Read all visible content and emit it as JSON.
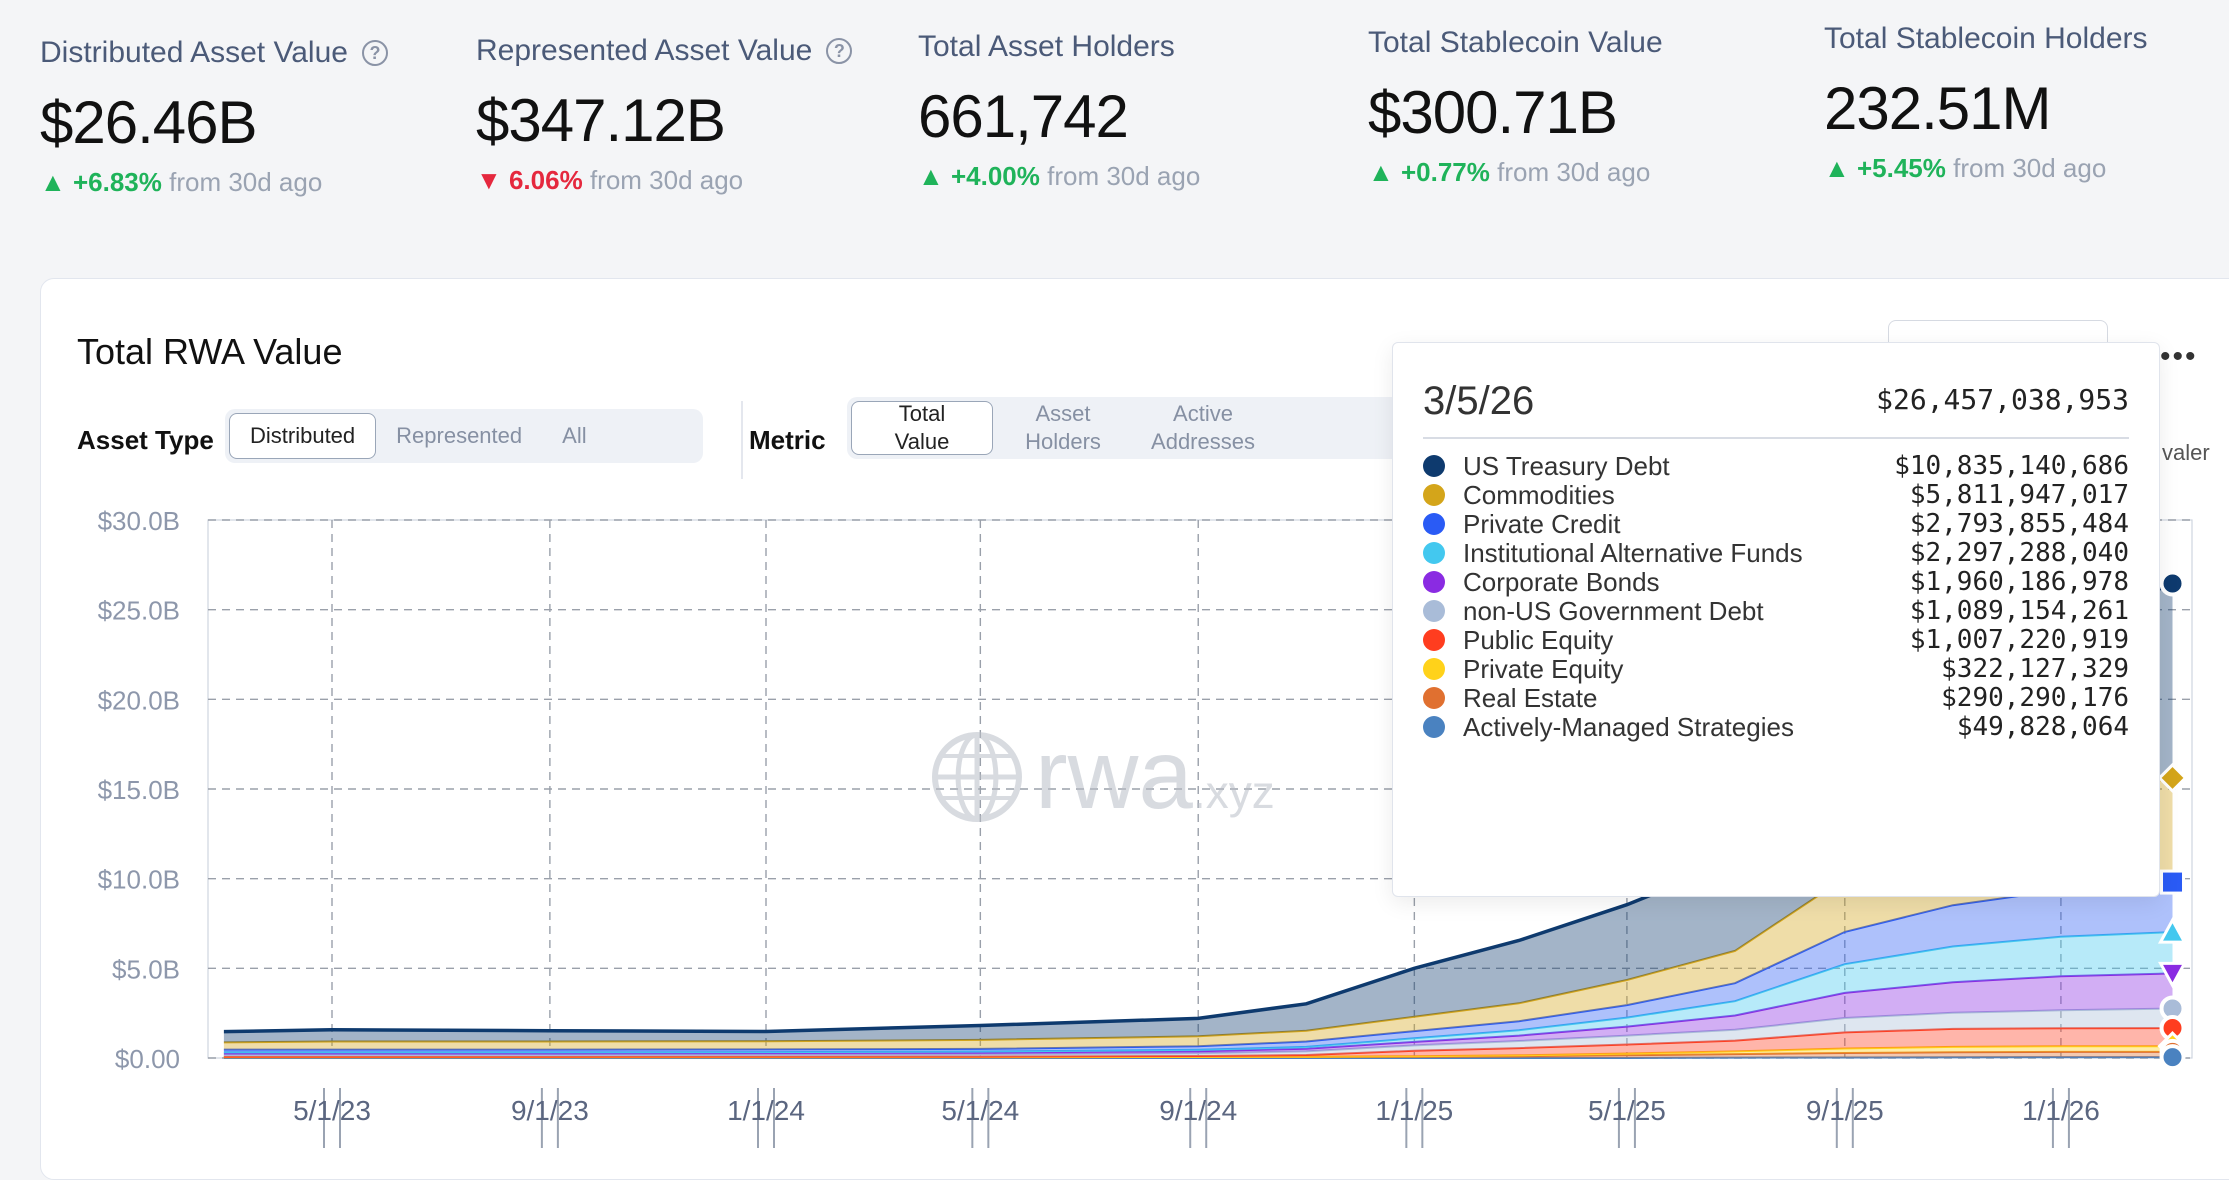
{
  "stats": [
    {
      "label": "Distributed Asset Value",
      "has_help": true,
      "value": "$26.46B",
      "dir": "up",
      "delta": "+6.83%",
      "suffix": "from 30d ago"
    },
    {
      "label": "Represented Asset Value",
      "has_help": true,
      "value": "$347.12B",
      "dir": "down",
      "delta": "6.06%",
      "suffix": "from 30d ago"
    },
    {
      "label": "Total Asset Holders",
      "has_help": false,
      "value": "661,742",
      "dir": "up",
      "delta": "+4.00%",
      "suffix": "from 30d ago"
    },
    {
      "label": "Total Stablecoin Value",
      "has_help": false,
      "value": "$300.71B",
      "dir": "up",
      "delta": "+0.77%",
      "suffix": "from 30d ago"
    },
    {
      "label": "Total Stablecoin Holders",
      "has_help": false,
      "value": "232.51M",
      "dir": "up",
      "delta": "+5.45%",
      "suffix": "from 30d ago"
    }
  ],
  "card": {
    "title": "Total RWA Value",
    "asset_type_label": "Asset Type",
    "asset_type_options": [
      "Distributed",
      "Represented",
      "All"
    ],
    "asset_type_selected": "Distributed",
    "metric_label": "Metric",
    "metric_options": [
      "Total Value",
      "Asset Holders",
      "Active Addresses"
    ],
    "metric_selected": "Total Value",
    "cut_label": "valer",
    "watermark": "rwa",
    "watermark_suffix": ".xyz",
    "help_glyph": "?",
    "up_glyph": "▲",
    "down_glyph": "▼",
    "more_glyph": "•••"
  },
  "tooltip": {
    "date": "3/5/26",
    "total": "$26,457,038,953",
    "rows": [
      {
        "name": "US Treasury Debt",
        "value": "$10,835,140,686",
        "color": "#0e3a6e"
      },
      {
        "name": "Commodities",
        "value": "$5,811,947,017",
        "color": "#d4a51a"
      },
      {
        "name": "Private Credit",
        "value": "$2,793,855,484",
        "color": "#2a5bf5"
      },
      {
        "name": "Institutional Alternative Funds",
        "value": "$2,297,288,040",
        "color": "#43c8ef"
      },
      {
        "name": "Corporate Bonds",
        "value": "$1,960,186,978",
        "color": "#8a2be2"
      },
      {
        "name": "non-US Government Debt",
        "value": "$1,089,154,261",
        "color": "#a9bcd8"
      },
      {
        "name": "Public Equity",
        "value": "$1,007,220,919",
        "color": "#ff3d1f"
      },
      {
        "name": "Private Equity",
        "value": "$322,127,329",
        "color": "#ffd21a"
      },
      {
        "name": "Real Estate",
        "value": "$290,290,176",
        "color": "#e07030"
      },
      {
        "name": "Actively-Managed Strategies",
        "value": "$49,828,064",
        "color": "#4a82c0"
      }
    ]
  },
  "chart_data": {
    "type": "area",
    "stacked": true,
    "ylim": [
      0,
      30
    ],
    "y_unit": "B",
    "y_ticks": [
      "$0.00",
      "$5.0B",
      "$10.0B",
      "$15.0B",
      "$20.0B",
      "$25.0B",
      "$30.0B"
    ],
    "x_ticks": [
      "5/1/23",
      "9/1/23",
      "1/1/24",
      "5/1/24",
      "9/1/24",
      "1/1/25",
      "5/1/25",
      "9/1/25",
      "1/1/26"
    ],
    "grid": true,
    "x": [
      "3/1/23",
      "5/1/23",
      "9/1/23",
      "1/1/24",
      "5/1/24",
      "9/1/24",
      "11/1/24",
      "1/1/25",
      "3/1/25",
      "5/1/25",
      "7/1/25",
      "9/1/25",
      "11/1/25",
      "1/1/26",
      "3/5/26"
    ],
    "series": [
      {
        "name": "Actively-Managed Strategies",
        "color": "#4a82c0",
        "values": [
          0,
          0,
          0,
          0,
          0,
          0,
          0,
          0,
          0,
          0,
          0.02,
          0.03,
          0.04,
          0.05,
          0.05
        ]
      },
      {
        "name": "Real Estate",
        "color": "#e07030",
        "values": [
          0.05,
          0.05,
          0.05,
          0.05,
          0.05,
          0.06,
          0.06,
          0.07,
          0.1,
          0.15,
          0.2,
          0.25,
          0.28,
          0.29,
          0.29
        ]
      },
      {
        "name": "Private Equity",
        "color": "#ffd21a",
        "values": [
          0,
          0,
          0,
          0,
          0,
          0,
          0.01,
          0.03,
          0.05,
          0.1,
          0.15,
          0.25,
          0.3,
          0.32,
          0.32
        ]
      },
      {
        "name": "Public Equity",
        "color": "#ff3d1f",
        "values": [
          0.02,
          0.02,
          0.02,
          0.03,
          0.03,
          0.05,
          0.1,
          0.3,
          0.4,
          0.5,
          0.6,
          0.9,
          1.0,
          1.0,
          1.01
        ]
      },
      {
        "name": "non-US Government Debt",
        "color": "#a9bcd8",
        "values": [
          0.1,
          0.1,
          0.1,
          0.1,
          0.12,
          0.15,
          0.2,
          0.3,
          0.4,
          0.5,
          0.6,
          0.8,
          0.9,
          1.0,
          1.09
        ]
      },
      {
        "name": "Corporate Bonds",
        "color": "#8a2be2",
        "values": [
          0.1,
          0.1,
          0.1,
          0.1,
          0.1,
          0.12,
          0.15,
          0.2,
          0.3,
          0.5,
          0.8,
          1.4,
          1.7,
          1.9,
          1.96
        ]
      },
      {
        "name": "Institutional Alternative Funds",
        "color": "#43c8ef",
        "values": [
          0.05,
          0.05,
          0.05,
          0.05,
          0.06,
          0.08,
          0.1,
          0.2,
          0.3,
          0.5,
          0.8,
          1.6,
          2.0,
          2.2,
          2.3
        ]
      },
      {
        "name": "Private Credit",
        "color": "#2a5bf5",
        "values": [
          0.15,
          0.15,
          0.15,
          0.15,
          0.15,
          0.2,
          0.3,
          0.4,
          0.5,
          0.7,
          1.0,
          1.8,
          2.3,
          2.6,
          2.79
        ]
      },
      {
        "name": "Commodities",
        "color": "#d4a51a",
        "values": [
          0.4,
          0.45,
          0.45,
          0.45,
          0.5,
          0.55,
          0.6,
          0.8,
          1.0,
          1.4,
          1.8,
          3.0,
          4.0,
          5.0,
          5.81
        ]
      },
      {
        "name": "US Treasury Debt",
        "color": "#0e3a6e",
        "values": [
          0.6,
          0.65,
          0.6,
          0.55,
          0.8,
          1.0,
          1.5,
          2.7,
          3.5,
          4.2,
          5.0,
          6.5,
          8.0,
          9.5,
          10.84
        ]
      }
    ]
  }
}
